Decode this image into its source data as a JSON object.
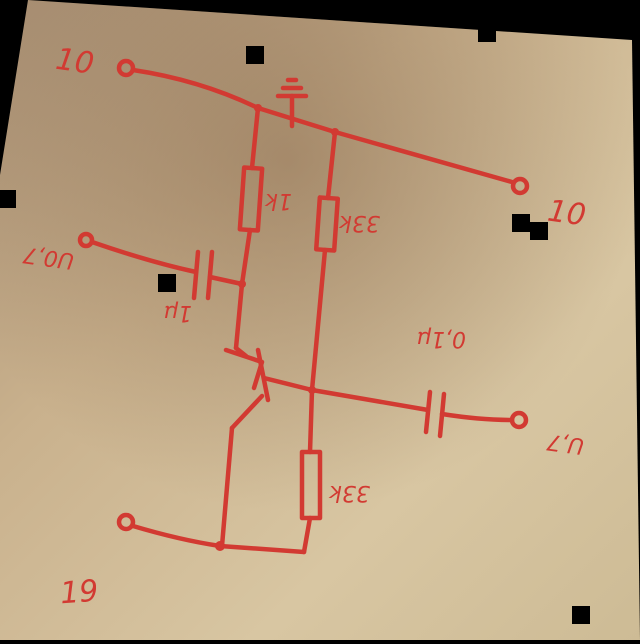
{
  "diagram": {
    "labels": {
      "top_left_node": "10",
      "right_node": "10",
      "bottom_node": "19",
      "resistor_left": "1k",
      "resistor_right_top": "33k",
      "resistor_bottom": "33k",
      "capacitor_left": "1µ",
      "capacitor_right": "0,1µ",
      "input_left": "U0,7",
      "output_right": "U,7"
    },
    "colors": {
      "ink": "#d23a32",
      "paper": "#c9b38f",
      "background": "#000000"
    }
  }
}
